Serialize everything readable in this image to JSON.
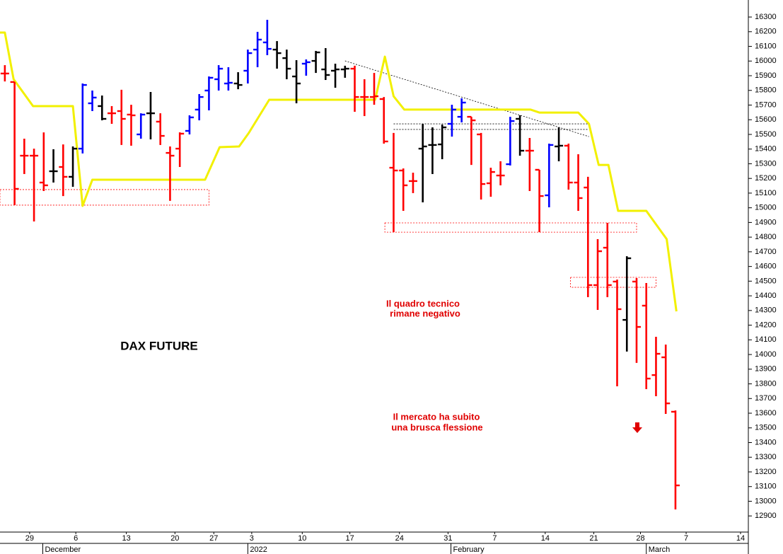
{
  "chart_data": {
    "type": "ohlc",
    "title": "DAX FUTURE",
    "x": [
      0,
      1,
      2,
      3,
      4,
      5,
      6,
      7,
      8,
      9,
      10,
      11,
      12,
      13,
      14,
      15,
      16,
      17,
      18,
      19,
      20,
      21,
      22,
      23,
      24,
      25,
      26,
      27,
      28,
      29,
      30,
      31,
      32,
      33,
      34,
      35,
      36,
      37,
      38,
      39,
      40,
      41,
      42,
      43,
      44,
      45,
      46,
      47,
      48,
      49,
      50,
      51,
      52,
      53,
      54,
      55,
      56,
      57,
      58,
      59,
      60,
      61,
      62,
      63,
      64,
      65,
      66,
      67,
      68,
      69
    ],
    "open": [
      15915,
      15857,
      15355,
      15355,
      15172,
      15249,
      15278,
      15211,
      15403,
      15712,
      15693,
      15644,
      15659,
      15635,
      15500,
      15644,
      15587,
      15374,
      15403,
      15524,
      15669,
      15799,
      15876,
      15847,
      15847,
      15934,
      16078,
      16127,
      16078,
      16020,
      15895,
      15982,
      16001,
      15943,
      15934,
      15943,
      15948,
      15755,
      15755,
      15741,
      15273,
      15254,
      15182,
      15403,
      15428,
      15432,
      15572,
      15620,
      15620,
      15500,
      15167,
      15220,
      15297,
      15606,
      15389,
      15259,
      15085,
      15418,
      15423,
      15172,
      15138,
      14473,
      14728,
      14497,
      14236,
      14497,
      14333,
      13860,
      13981,
      13610
    ],
    "high": [
      15972,
      15857,
      15471,
      15403,
      15514,
      15399,
      15432,
      15418,
      15847,
      15799,
      15765,
      15693,
      15804,
      15702,
      15644,
      15789,
      15644,
      15418,
      15514,
      15630,
      15775,
      15895,
      15972,
      15958,
      15924,
      16078,
      16199,
      16281,
      16136,
      16078,
      16006,
      16011,
      16069,
      16088,
      15982,
      15968,
      15968,
      15876,
      15919,
      15755,
      15510,
      15268,
      15239,
      15572,
      15548,
      15567,
      15702,
      15746,
      15620,
      15510,
      15273,
      15317,
      15620,
      15630,
      15476,
      15259,
      15437,
      15548,
      15437,
      15365,
      15211,
      14786,
      14897,
      14511,
      14670,
      14521,
      14487,
      14121,
      14068,
      13619
    ],
    "low": [
      15861,
      15018,
      15230,
      14907,
      15114,
      15172,
      15080,
      15143,
      15370,
      15659,
      15596,
      15572,
      15428,
      15423,
      15471,
      15466,
      15428,
      15047,
      15278,
      15500,
      15596,
      15664,
      15799,
      15799,
      15808,
      15847,
      15958,
      16040,
      15948,
      15876,
      15712,
      15900,
      15919,
      15871,
      15818,
      15886,
      15654,
      15625,
      15702,
      15437,
      14834,
      14979,
      15100,
      15037,
      15230,
      15331,
      15485,
      15582,
      15292,
      15056,
      15075,
      15153,
      15288,
      15355,
      15114,
      14834,
      15003,
      15317,
      15124,
      14979,
      14391,
      14304,
      14391,
      13783,
      14020,
      13943,
      13764,
      13716,
      13595,
      12944
    ],
    "close": [
      15915,
      15129,
      15355,
      15355,
      15153,
      15249,
      15211,
      15403,
      15837,
      15751,
      15606,
      15644,
      15606,
      15630,
      15635,
      15644,
      15490,
      15355,
      15505,
      15616,
      15755,
      15886,
      15948,
      15852,
      15837,
      16054,
      16146,
      16083,
      16054,
      15948,
      15847,
      15992,
      16059,
      15905,
      15943,
      15948,
      15755,
      15755,
      15760,
      15452,
      15254,
      15153,
      15182,
      15418,
      15428,
      15548,
      15669,
      15717,
      15596,
      15162,
      15244,
      15220,
      15591,
      15389,
      15389,
      15080,
      15428,
      15423,
      15172,
      15066,
      14473,
      14704,
      14473,
      14309,
      14656,
      14188,
      13836,
      14005,
      13667,
      13108
    ],
    "bar_colors": [
      "#ff0000",
      "#ff0000",
      "#ff0000",
      "#ff0000",
      "#ff0000",
      "#000000",
      "#ff0000",
      "#000000",
      "#0000ff",
      "#0000ff",
      "#000000",
      "#ff0000",
      "#ff0000",
      "#ff0000",
      "#0000ff",
      "#000000",
      "#ff0000",
      "#ff0000",
      "#ff0000",
      "#0000ff",
      "#0000ff",
      "#0000ff",
      "#0000ff",
      "#0000ff",
      "#000000",
      "#0000ff",
      "#0000ff",
      "#0000ff",
      "#000000",
      "#000000",
      "#000000",
      "#0000ff",
      "#000000",
      "#000000",
      "#000000",
      "#000000",
      "#ff0000",
      "#ff0000",
      "#ff0000",
      "#ff0000",
      "#ff0000",
      "#ff0000",
      "#ff0000",
      "#000000",
      "#000000",
      "#000000",
      "#0000ff",
      "#0000ff",
      "#ff0000",
      "#ff0000",
      "#ff0000",
      "#ff0000",
      "#0000ff",
      "#000000",
      "#ff0000",
      "#ff0000",
      "#0000ff",
      "#000000",
      "#ff0000",
      "#ff0000",
      "#ff0000",
      "#ff0000",
      "#ff0000",
      "#ff0000",
      "#000000",
      "#ff0000",
      "#ff0000",
      "#ff0000",
      "#ff0000",
      "#ff0000"
    ],
    "stop_line": {
      "color": "#f2f000",
      "x": [
        -0.5,
        0,
        0.9,
        2.9,
        7,
        8,
        9,
        20.6,
        22.1,
        24.1,
        25.1,
        27.2,
        38.1,
        39.1,
        40,
        41.1,
        54.1,
        55,
        59,
        60.1,
        61.1,
        62.1,
        63.1,
        66,
        68.1,
        69.1
      ],
      "values": [
        16194,
        16194,
        15876,
        15693,
        15693,
        15013,
        15191,
        15191,
        15413,
        15418,
        15510,
        15736,
        15736,
        16030,
        15760,
        15669,
        15669,
        15649,
        15649,
        15572,
        15292,
        15292,
        14979,
        14979,
        14786,
        14294
      ]
    },
    "trendlines": [
      {
        "color": "#000000",
        "x": [
          35,
          60.1
        ],
        "values": [
          16001,
          15485
        ]
      },
      {
        "color": "#000000",
        "x": [
          40,
          60
        ],
        "values": [
          15572,
          15572
        ]
      },
      {
        "color": "#000000",
        "x": [
          40,
          60
        ],
        "values": [
          15534,
          15534
        ]
      }
    ],
    "zones": [
      {
        "color": "#ff0000",
        "x": [
          -0.5,
          21
        ],
        "values": [
          15018,
          15124
        ]
      },
      {
        "color": "#ff0000",
        "x": [
          39.1,
          65
        ],
        "values": [
          14834,
          14897
        ]
      },
      {
        "color": "#ff0000",
        "x": [
          58.2,
          67
        ],
        "values": [
          14458,
          14526
        ]
      }
    ],
    "annotations": [
      {
        "lines": [
          "Il quadro tecnico",
          "rimane negativo"
        ]
      },
      {
        "lines": [
          "Il mercato ha subito",
          "una brusca flessione"
        ]
      }
    ],
    "xlim": [
      -0.5,
      76.5
    ],
    "ylim": [
      12790,
      16416
    ],
    "yticks": [
      12900,
      13000,
      13100,
      13200,
      13300,
      13400,
      13500,
      13600,
      13700,
      13800,
      13900,
      14000,
      14100,
      14200,
      14300,
      14400,
      14500,
      14600,
      14700,
      14800,
      14900,
      15000,
      15100,
      15200,
      15300,
      15400,
      15500,
      15600,
      15700,
      15800,
      15900,
      16000,
      16100,
      16200,
      16300
    ],
    "xticks": [
      {
        "value": 2.55,
        "label": "29"
      },
      {
        "value": 7.3,
        "label": "6"
      },
      {
        "value": 12.5,
        "label": "13"
      },
      {
        "value": 17.5,
        "label": "20"
      },
      {
        "value": 21.5,
        "label": "27"
      },
      {
        "value": 25.4,
        "label": "3"
      },
      {
        "value": 30.6,
        "label": "10"
      },
      {
        "value": 35.5,
        "label": "17"
      },
      {
        "value": 40.6,
        "label": "24"
      },
      {
        "value": 45.6,
        "label": "31"
      },
      {
        "value": 50.4,
        "label": "7"
      },
      {
        "value": 55.6,
        "label": "14"
      },
      {
        "value": 60.6,
        "label": "21"
      },
      {
        "value": 65.4,
        "label": "28"
      },
      {
        "value": 70.1,
        "label": "7"
      },
      {
        "value": 75.7,
        "label": "14"
      }
    ],
    "month_labels": [
      {
        "value": 3.9,
        "label": "December"
      },
      {
        "value": 25,
        "label": "2022"
      },
      {
        "value": 45.9,
        "label": "February"
      },
      {
        "value": 66,
        "label": "March"
      }
    ],
    "grid": false
  }
}
